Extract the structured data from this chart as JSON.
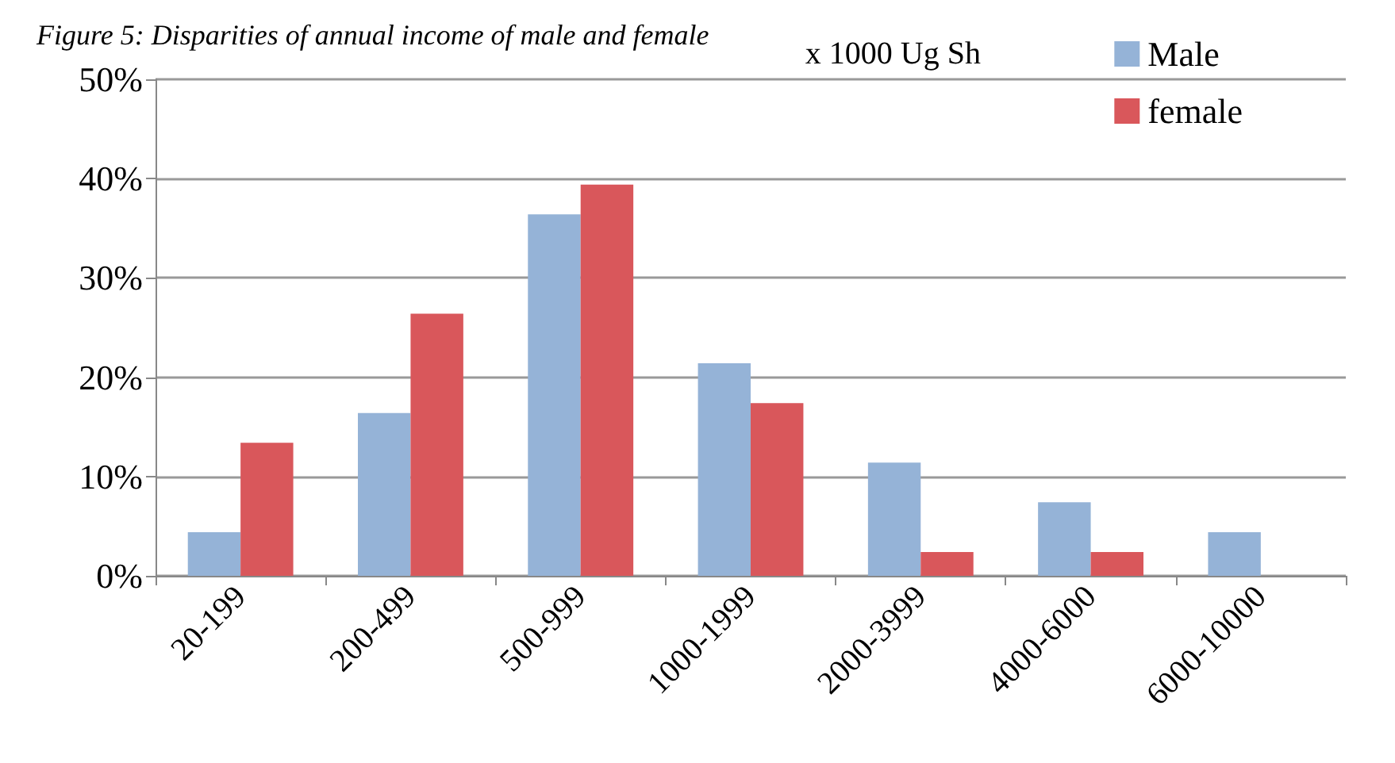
{
  "chart_data": {
    "type": "bar",
    "title": "Figure 5: Disparities of annual income of male and female",
    "annotations": [
      "x 1000 Ug Sh"
    ],
    "categories": [
      "20-199",
      "200-499",
      "500-999",
      "1000-1999",
      "2000-3999",
      "4000-6000",
      "6000-10000"
    ],
    "series": [
      {
        "name": "Male",
        "color": "#95b3d7",
        "values": [
          4.4,
          16.4,
          36.4,
          21.4,
          11.4,
          7.4,
          4.4
        ]
      },
      {
        "name": "female",
        "color": "#d9575b",
        "values": [
          13.4,
          26.4,
          39.4,
          17.4,
          2.4,
          2.4,
          0
        ]
      }
    ],
    "ylim": [
      0,
      50
    ],
    "yticks": [
      {
        "value": 0,
        "label": "0%"
      },
      {
        "value": 10,
        "label": "10%"
      },
      {
        "value": 20,
        "label": "20%"
      },
      {
        "value": 30,
        "label": "30%"
      },
      {
        "value": 40,
        "label": "40%"
      },
      {
        "value": 50,
        "label": "50%"
      }
    ],
    "grid": "y",
    "legend": "top right"
  }
}
